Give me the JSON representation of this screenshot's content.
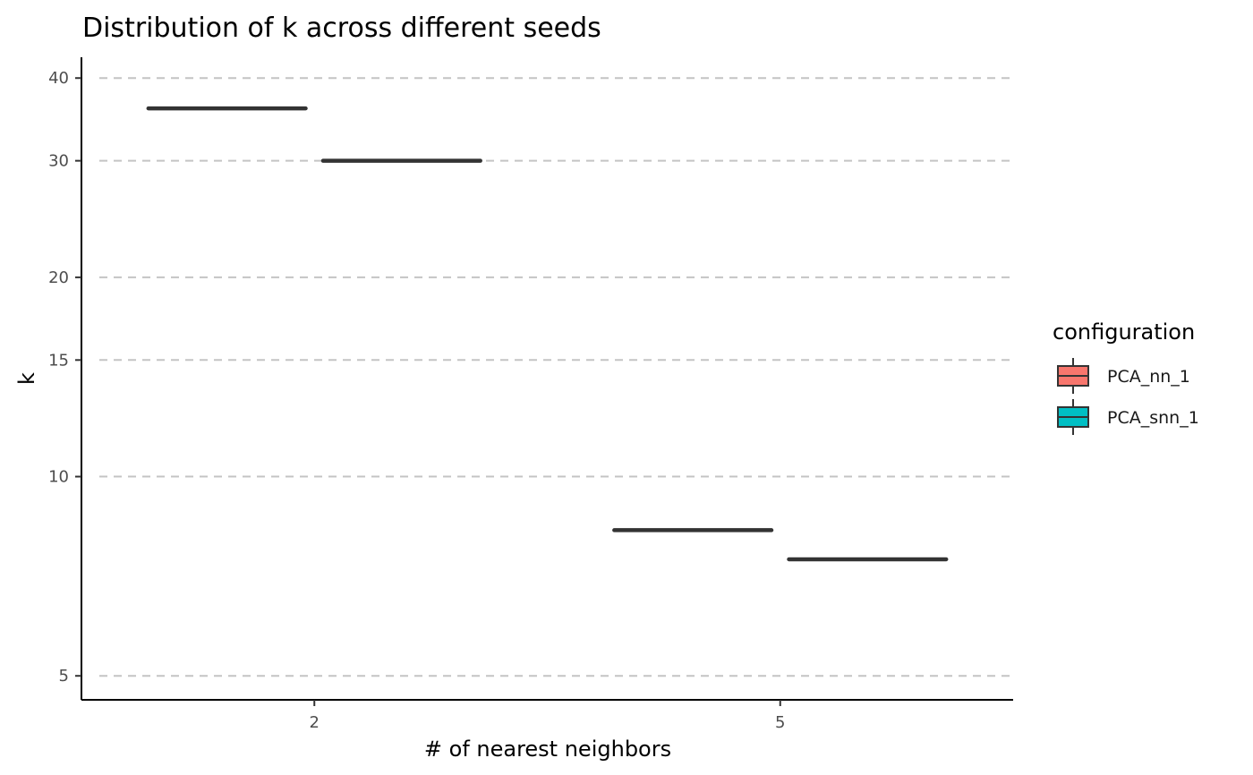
{
  "chart_data": {
    "type": "box",
    "title": "Distribution of k across different seeds",
    "xlabel": "# of nearest neighbors",
    "ylabel": "k",
    "y_scale": "log10",
    "ylim": [
      4.6,
      43
    ],
    "y_ticks": [
      5,
      10,
      15,
      20,
      30,
      40
    ],
    "categories": [
      "2",
      "5"
    ],
    "series": [
      {
        "name": "PCA_nn_1",
        "color": "#F8766D",
        "values": [
          36,
          8.3
        ]
      },
      {
        "name": "PCA_snn_1",
        "color": "#00BFC4",
        "values": [
          30,
          7.5
        ]
      }
    ],
    "legend": {
      "title": "configuration",
      "position": "right"
    },
    "grid": {
      "major_y": true,
      "style": "dashed"
    }
  }
}
